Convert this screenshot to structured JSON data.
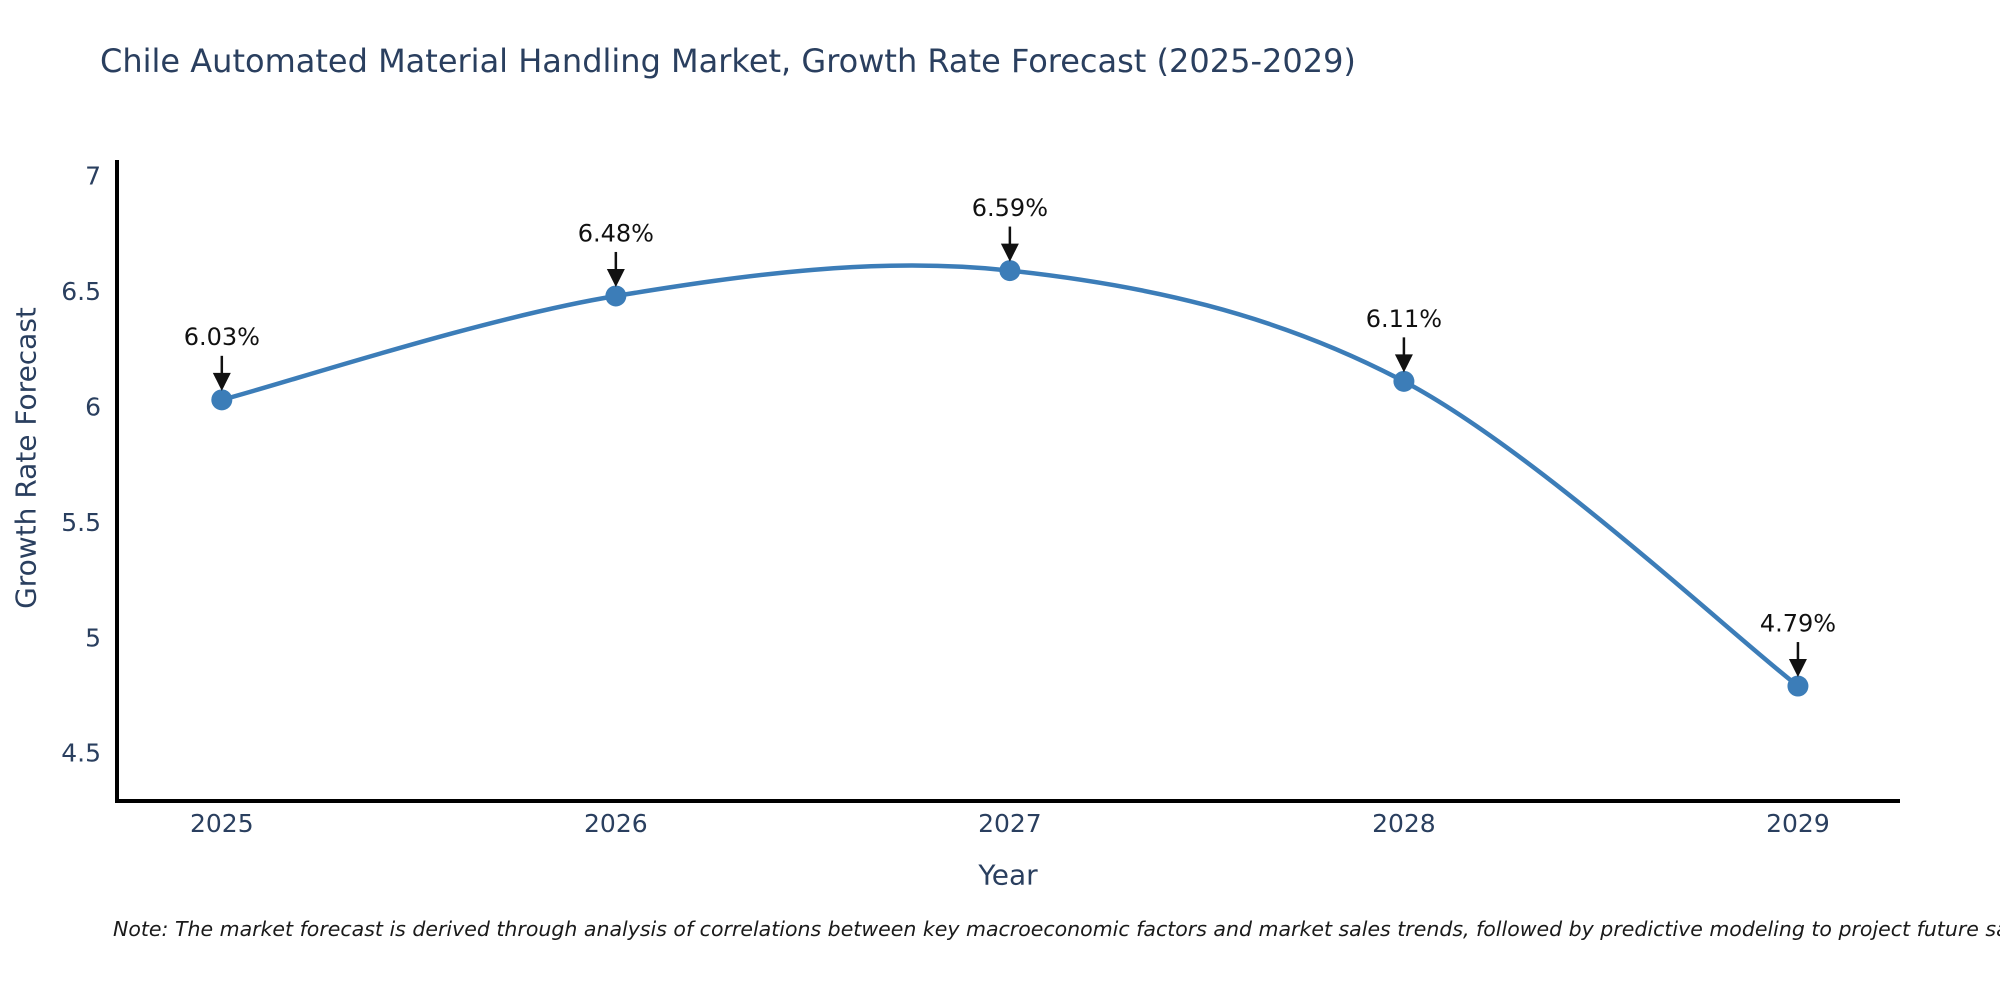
{
  "title": "Chile Automated Material Handling Market, Growth Rate Forecast (2025-2029)",
  "note": "Note: The market forecast is derived through analysis of correlations between key macroeconomic factors and market sales trends, followed by predictive modeling to project future sales",
  "chart_data": {
    "type": "line",
    "line_shape": "spline",
    "title": "Chile Automated Material Handling Market, Growth Rate Forecast (2025-2029)",
    "xlabel": "Year",
    "ylabel": "Growth Rate Forecast",
    "x": [
      2025,
      2026,
      2027,
      2028,
      2029
    ],
    "values": [
      6.03,
      6.48,
      6.59,
      6.11,
      4.79
    ],
    "point_labels": [
      "6.03%",
      "6.48%",
      "6.59%",
      "6.11%",
      "4.79%"
    ],
    "xticks": [
      "2025",
      "2026",
      "2027",
      "2028",
      "2029"
    ],
    "yticks": [
      4.5,
      5,
      5.5,
      6,
      6.5,
      7
    ],
    "xlim": [
      2024.734,
      2029.259
    ],
    "ylim": [
      4.292,
      7.069
    ],
    "grid": false,
    "legend": false,
    "colors": {
      "line": "#3c7db8",
      "marker": "#3c7db8",
      "axis": "#000000",
      "tick_label": "#2a3f5f",
      "title": "#2a3f5f",
      "annotation": "#111111"
    }
  }
}
